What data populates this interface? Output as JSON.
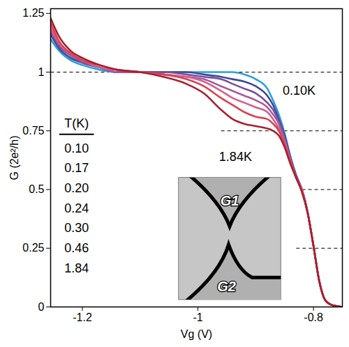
{
  "chart_data": {
    "type": "line",
    "x_label": "Vg (V)",
    "y_label": "G (2e²/h)",
    "xlim": [
      -1.255,
      -0.75
    ],
    "ylim": [
      0,
      1.27
    ],
    "xticks": [
      -1.2,
      -1,
      -0.8
    ],
    "yticks": [
      0,
      0.25,
      0.5,
      0.75,
      1,
      1.25
    ],
    "legend": "left",
    "legend_title": "T(K)",
    "x": [
      -1.255,
      -1.24,
      -1.22,
      -1.2,
      -1.17,
      -1.14,
      -1.1,
      -1.06,
      -1.02,
      -0.99,
      -0.96,
      -0.94,
      -0.92,
      -0.9,
      -0.88,
      -0.87,
      -0.86,
      -0.85,
      -0.84,
      -0.83,
      -0.82,
      -0.81,
      -0.8,
      -0.79,
      -0.78,
      -0.77,
      -0.75
    ],
    "series": [
      {
        "name": "0.10",
        "color": "#2a9fdc",
        "values": [
          1.14,
          1.09,
          1.05,
          1.03,
          1.01,
          1.0,
          1.0,
          1.0,
          1.0,
          1.0,
          1.0,
          1.0,
          0.99,
          0.97,
          0.93,
          0.88,
          0.82,
          0.74,
          0.64,
          0.56,
          0.5,
          0.4,
          0.26,
          0.11,
          0.03,
          0.01,
          0.0
        ]
      },
      {
        "name": "0.17",
        "color": "#3d4a96",
        "values": [
          1.16,
          1.1,
          1.06,
          1.04,
          1.02,
          1.0,
          1.0,
          1.0,
          1.0,
          0.99,
          0.98,
          0.97,
          0.96,
          0.94,
          0.9,
          0.86,
          0.8,
          0.73,
          0.64,
          0.56,
          0.5,
          0.4,
          0.26,
          0.11,
          0.03,
          0.01,
          0.0
        ]
      },
      {
        "name": "0.20",
        "color": "#7a4d9c",
        "values": [
          1.17,
          1.11,
          1.07,
          1.04,
          1.02,
          1.0,
          1.0,
          1.0,
          0.99,
          0.98,
          0.97,
          0.95,
          0.93,
          0.91,
          0.87,
          0.84,
          0.79,
          0.72,
          0.63,
          0.56,
          0.5,
          0.4,
          0.26,
          0.11,
          0.03,
          0.01,
          0.0
        ]
      },
      {
        "name": "0.24",
        "color": "#a65a9e",
        "values": [
          1.18,
          1.12,
          1.07,
          1.05,
          1.02,
          1.0,
          1.0,
          0.99,
          0.98,
          0.97,
          0.94,
          0.92,
          0.9,
          0.88,
          0.85,
          0.82,
          0.78,
          0.71,
          0.63,
          0.55,
          0.5,
          0.4,
          0.26,
          0.11,
          0.03,
          0.01,
          0.0
        ]
      },
      {
        "name": "0.30",
        "color": "#d2608e",
        "values": [
          1.19,
          1.12,
          1.08,
          1.05,
          1.02,
          1.01,
          1.0,
          0.99,
          0.98,
          0.96,
          0.92,
          0.89,
          0.87,
          0.85,
          0.83,
          0.8,
          0.76,
          0.7,
          0.62,
          0.55,
          0.5,
          0.4,
          0.26,
          0.11,
          0.03,
          0.01,
          0.0
        ]
      },
      {
        "name": "0.46",
        "color": "#d9424f",
        "values": [
          1.21,
          1.13,
          1.08,
          1.05,
          1.03,
          1.01,
          1.0,
          0.99,
          0.97,
          0.94,
          0.89,
          0.86,
          0.83,
          0.81,
          0.8,
          0.78,
          0.75,
          0.69,
          0.62,
          0.55,
          0.49,
          0.4,
          0.26,
          0.11,
          0.03,
          0.01,
          0.0
        ]
      },
      {
        "name": "1.84",
        "color": "#a8202e",
        "values": [
          1.23,
          1.15,
          1.09,
          1.06,
          1.03,
          1.01,
          1.0,
          0.98,
          0.95,
          0.91,
          0.84,
          0.8,
          0.78,
          0.77,
          0.76,
          0.75,
          0.73,
          0.68,
          0.61,
          0.55,
          0.49,
          0.4,
          0.26,
          0.11,
          0.03,
          0.01,
          0.0
        ]
      }
    ],
    "reference_lines": [
      {
        "y": 1,
        "x_start": -1.255,
        "x_end": -0.75,
        "line_style": "dashed"
      },
      {
        "y": 0.75,
        "x_start": -0.96,
        "x_end": -0.75,
        "line_style": "dashed"
      },
      {
        "y": 0.5,
        "x_start": -0.82,
        "x_end": -0.75,
        "line_style": "dashed"
      },
      {
        "y": 0.25,
        "x_start": -0.83,
        "x_end": -0.75,
        "line_style": "dashed"
      }
    ],
    "annotations": [
      {
        "text": "0.10K",
        "x": -0.825,
        "y": 0.92
      },
      {
        "text": "1.84K",
        "x": -0.935,
        "y": 0.64
      }
    ],
    "inset": {
      "labels": [
        "G1",
        "G2"
      ]
    }
  }
}
